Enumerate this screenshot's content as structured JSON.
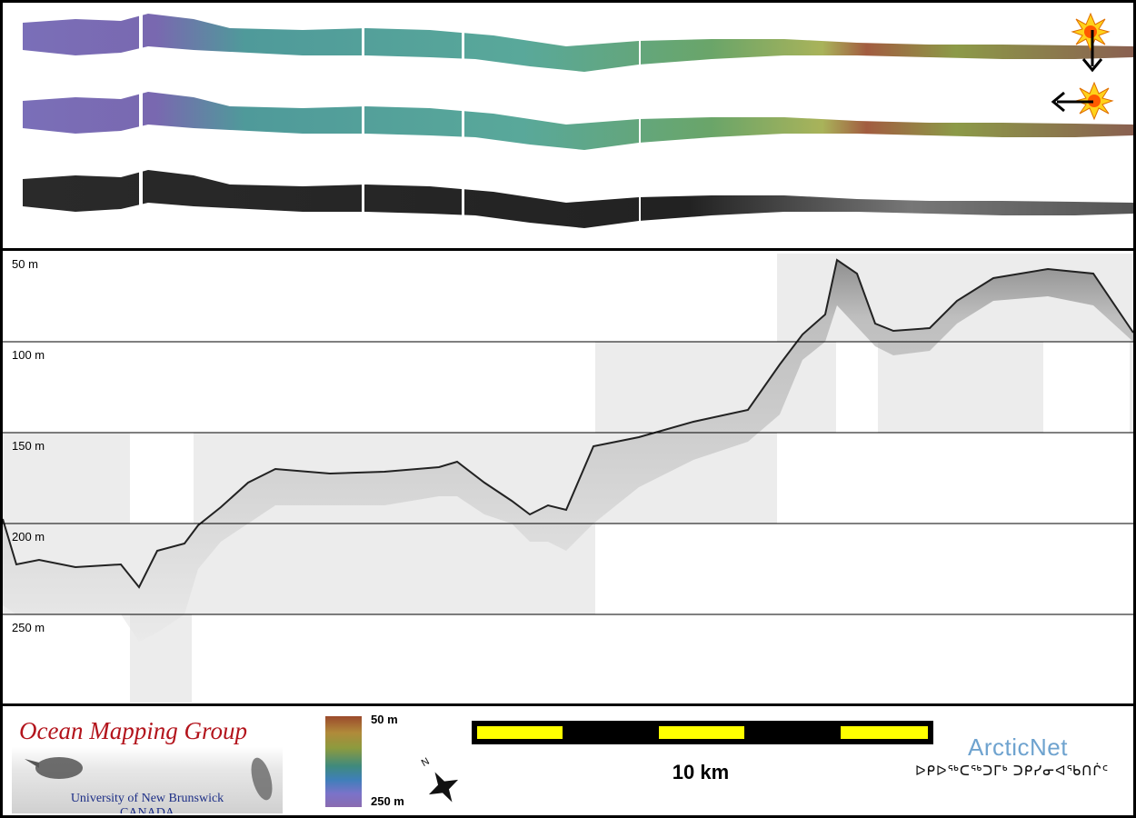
{
  "depth_labels": [
    "50 m",
    "100 m",
    "150 m",
    "200 m",
    "250 m"
  ],
  "logo": {
    "title": "Ocean Mapping Group",
    "university": "University of New Brunswick",
    "country": "CANADA"
  },
  "colorbar": {
    "top_label": "50 m",
    "bottom_label": "250 m"
  },
  "scale_bar": {
    "label": "10 km",
    "fill_color": "#ffff00",
    "segments": 5
  },
  "compass": {
    "label": "N"
  },
  "partner": {
    "name": "ArcticNet",
    "subtitle": "ᐅᑭᐅᖅᑕᖅᑐᒥᒃ ᑐᑭᓯᓂᐊᖃᑎᒌᑦ"
  },
  "icons": [
    "sun-icon",
    "arrow-down-icon",
    "arrow-left-icon",
    "compass-icon"
  ]
}
